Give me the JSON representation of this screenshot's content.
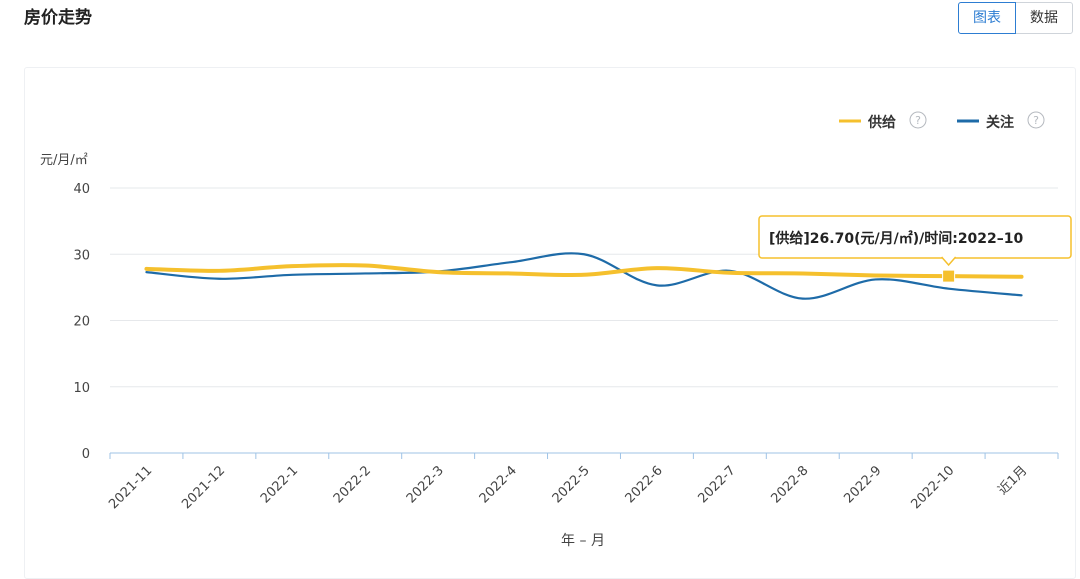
{
  "header": {
    "title": "房价走势",
    "toggle": {
      "chart_label": "图表",
      "data_label": "数据",
      "active": "chart"
    }
  },
  "colors": {
    "supply": "#f5c02d",
    "attention": "#1e6ba8",
    "accent": "#2d7dd2"
  },
  "legend": {
    "items": [
      {
        "name": "供给",
        "help": "?"
      },
      {
        "name": "关注",
        "help": "?"
      }
    ]
  },
  "chart_data": {
    "type": "line",
    "title": "房价走势",
    "ylabel": "元/月/㎡",
    "xlabel": "年 – 月",
    "ylim": [
      0,
      40
    ],
    "yticks": [
      0,
      10,
      20,
      30,
      40
    ],
    "grid": true,
    "legend_position": "top-right",
    "categories": [
      "2021-11",
      "2021-12",
      "2022-1",
      "2022-2",
      "2022-3",
      "2022-4",
      "2022-5",
      "2022-6",
      "2022-7",
      "2022-8",
      "2022-9",
      "2022-10",
      "近1月"
    ],
    "series": [
      {
        "name": "供给",
        "values": [
          27.8,
          27.5,
          28.2,
          28.3,
          27.3,
          27.1,
          26.9,
          27.9,
          27.2,
          27.1,
          26.8,
          26.7,
          26.6
        ]
      },
      {
        "name": "关注",
        "values": [
          27.3,
          26.3,
          26.9,
          27.1,
          27.4,
          28.8,
          30.0,
          25.3,
          27.5,
          23.3,
          26.2,
          24.8,
          23.8
        ]
      }
    ],
    "tooltip": {
      "text": "[供给]26.70(元/月/㎡)/时间:2022–10",
      "series_index": 0,
      "point_index": 11
    }
  }
}
